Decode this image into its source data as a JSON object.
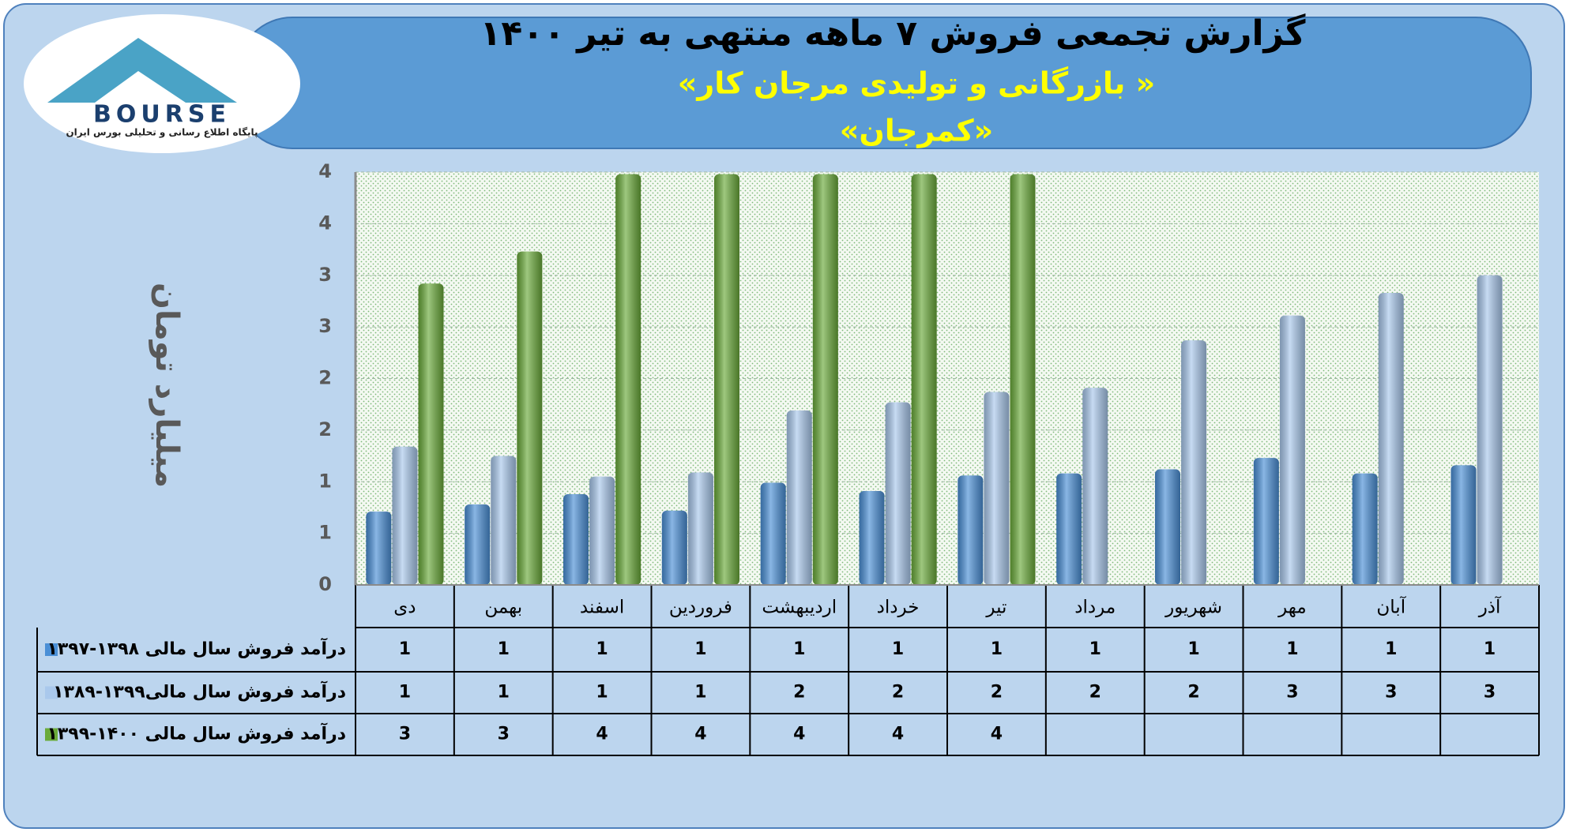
{
  "logo": {
    "text": "BOURSE",
    "caption": "پایگاه اطلاع رسانی و تحلیلی بورس ایران"
  },
  "chart_data": {
    "type": "bar",
    "title": "گزارش تجمعی فروش ۷ ماهه منتهی به تیر ۱۴۰۰",
    "subtitle": "«بازرگانی و تولیدی مرجان کار »",
    "company": "«کمرجان»",
    "y_label": "میلیارد تومان",
    "categories": [
      "دی",
      "بهمن",
      "اسفند",
      "فروردین",
      "اردیبهشت",
      "خرداد",
      "تیر",
      "مرداد",
      "شهریور",
      "مهر",
      "آبان",
      "آذر"
    ],
    "series": [
      {
        "name": "درآمد فروش سال مالی ۱۳۹۸-۱۳۹۷",
        "color": "#4a8fd6",
        "values": [
          0.71,
          0.78,
          0.88,
          0.72,
          0.99,
          0.91,
          1.06,
          1.08,
          1.12,
          1.23,
          1.08,
          1.16
        ],
        "value_labels": [
          "1",
          "1",
          "1",
          "1",
          "1",
          "1",
          "1",
          "1",
          "1",
          "1",
          "1",
          "1"
        ]
      },
      {
        "name": "درآمد فروش سال مالی۱۳۹۹-۱۳۸۹",
        "color": "#a9c8ec",
        "values": [
          1.34,
          1.25,
          1.05,
          1.09,
          1.69,
          1.77,
          1.87,
          1.91,
          2.37,
          2.61,
          2.83,
          3.0
        ],
        "value_labels": [
          "1",
          "1",
          "1",
          "1",
          "2",
          "2",
          "2",
          "2",
          "2",
          "3",
          "3",
          "3"
        ]
      },
      {
        "name": "درآمد فروش سال مالی ۱۴۰۰-۱۳۹۹",
        "color": "#6aaa3a",
        "values": [
          2.92,
          3.23,
          3.98,
          3.98,
          3.98,
          3.98,
          3.98,
          null,
          null,
          null,
          null,
          null
        ],
        "value_labels": [
          "3",
          "3",
          "4",
          "4",
          "4",
          "4",
          "4",
          null,
          null,
          null,
          null,
          null
        ]
      }
    ],
    "ylim": [
      0,
      4
    ],
    "yticks": [
      0,
      {
        "value": 0.5,
        "label": "1"
      },
      1,
      {
        "value": 1.5,
        "label": "2"
      },
      2,
      {
        "value": 2.5,
        "label": "3"
      },
      3,
      {
        "value": 3.5,
        "label": "4"
      },
      4
    ],
    "grid": true
  }
}
